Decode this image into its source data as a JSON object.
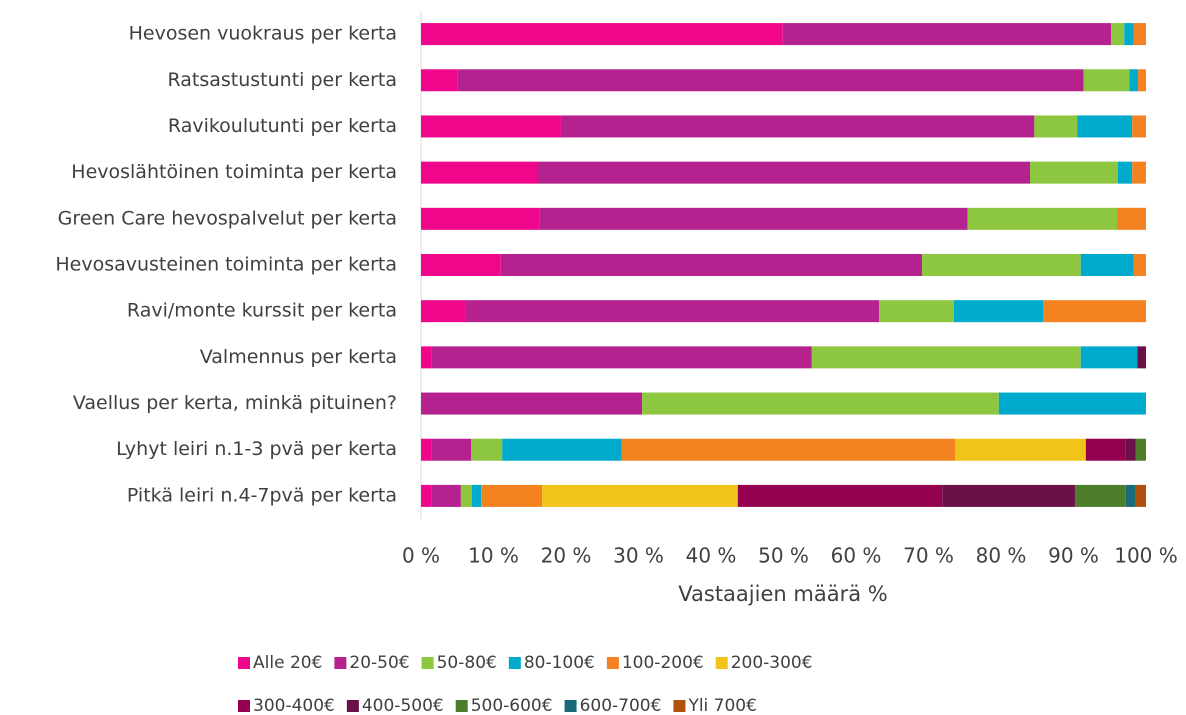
{
  "chart_data": {
    "type": "bar",
    "orientation": "horizontal",
    "stacked": true,
    "categories": [
      "Hevosen vuokraus per kerta",
      "Ratsastustunti per kerta",
      "Ravikoulutunti per kerta",
      "Hevoslähtöinen toiminta per kerta",
      "Green Care hevospalvelut per kerta",
      "Hevosavusteinen toiminta per kerta",
      "Ravi/monte kurssit per kerta",
      "Valmennus per kerta",
      "Vaellus per kerta, minkä pituinen?",
      "Lyhyt leiri n.1-3 pvä per kerta",
      "Pitkä leiri n.4-7pvä per kerta"
    ],
    "series": [
      {
        "name": "Alle 20€",
        "color": "#f0068a",
        "values": [
          49.9,
          5.0,
          19.3,
          16.0,
          16.3,
          11.0,
          6.2,
          1.4,
          0,
          1.4,
          1.4
        ]
      },
      {
        "name": "20-50€",
        "color": "#b5218f",
        "values": [
          45.3,
          86.4,
          65.3,
          68.0,
          59.1,
          58.1,
          57.0,
          52.5,
          30.5,
          5.5,
          4.1
        ]
      },
      {
        "name": "50-80€",
        "color": "#8dc63f",
        "values": [
          1.8,
          6.3,
          5.9,
          12.1,
          20.6,
          21.9,
          10.3,
          37.1,
          49.2,
          4.3,
          1.5
        ]
      },
      {
        "name": "80-100€",
        "color": "#00aacc",
        "values": [
          1.3,
          1.2,
          7.6,
          2.0,
          0,
          7.3,
          12.3,
          7.8,
          20.3,
          16.5,
          1.3
        ]
      },
      {
        "name": "100-200€",
        "color": "#f58220",
        "values": [
          1.7,
          1.1,
          1.9,
          1.9,
          4.0,
          1.7,
          14.2,
          0,
          0,
          46.0,
          8.4
        ]
      },
      {
        "name": "200-300€",
        "color": "#f0c419",
        "values": [
          0,
          0,
          0,
          0,
          0,
          0,
          0,
          0,
          0,
          18.0,
          27.0
        ]
      },
      {
        "name": "300-400€",
        "color": "#930050",
        "values": [
          0,
          0,
          0,
          0,
          0,
          0,
          0,
          0,
          0,
          5.5,
          28.2
        ]
      },
      {
        "name": "400-500€",
        "color": "#6b1048",
        "values": [
          0,
          0,
          0,
          0,
          0,
          0,
          0,
          1.2,
          0,
          1.4,
          18.3
        ]
      },
      {
        "name": "500-600€",
        "color": "#4e7d2b",
        "values": [
          0,
          0,
          0,
          0,
          0,
          0,
          0,
          0,
          0,
          1.4,
          7.0
        ]
      },
      {
        "name": "600-700€",
        "color": "#1a6b7a",
        "values": [
          0,
          0,
          0,
          0,
          0,
          0,
          0,
          0,
          0,
          0,
          1.4
        ]
      },
      {
        "name": "Yli 700€",
        "color": "#b0520e",
        "values": [
          0,
          0,
          0,
          0,
          0,
          0,
          0,
          0,
          0,
          0,
          1.4
        ]
      }
    ],
    "xlabel": "Vastaajien määrä %",
    "xlim": [
      0,
      100
    ],
    "xticks": [
      {
        "value": 0,
        "label": "0 %"
      },
      {
        "value": 10,
        "label": "10 %"
      },
      {
        "value": 20,
        "label": "20 %"
      },
      {
        "value": 30,
        "label": "30 %"
      },
      {
        "value": 40,
        "label": "40 %"
      },
      {
        "value": 50,
        "label": "50 %"
      },
      {
        "value": 60,
        "label": "60 %"
      },
      {
        "value": 70,
        "label": "70 %"
      },
      {
        "value": 80,
        "label": "80 %"
      },
      {
        "value": 90,
        "label": "90 %"
      },
      {
        "value": 100,
        "label": "100 %"
      }
    ],
    "grid": false,
    "legend": "bottom"
  }
}
